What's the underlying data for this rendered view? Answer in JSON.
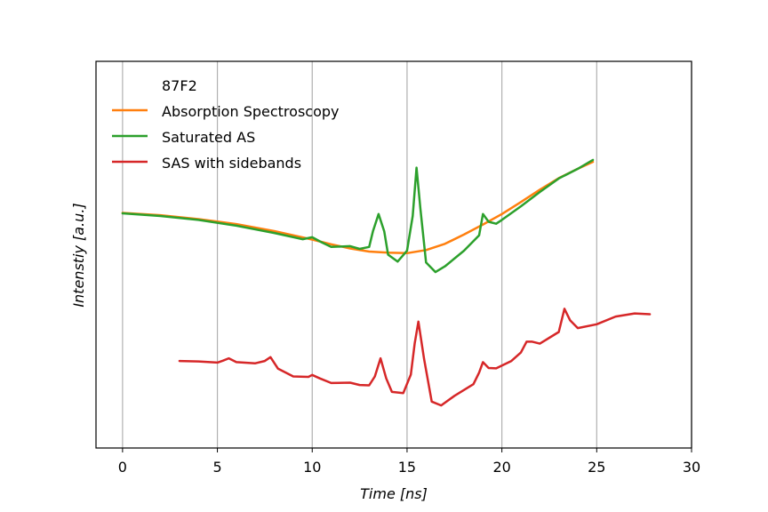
{
  "chart_data": {
    "type": "line",
    "xlabel": "Time [ns]",
    "ylabel": "Intenstiy [a.u.]",
    "xlim": [
      -1.4,
      30
    ],
    "ylim": [
      0,
      1
    ],
    "x_ticks": [
      0,
      5,
      10,
      15,
      20,
      25,
      30
    ],
    "grid": "vertical",
    "legend": {
      "placement": "top-left",
      "title": "87F2",
      "entries": [
        "Absorption Spectroscopy",
        "Saturated AS",
        "SAS with sidebands"
      ]
    },
    "colors": {
      "Absorption Spectroscopy": "#ff7f0e",
      "Saturated AS": "#2ca02c",
      "SAS with sidebands": "#d62728",
      "grid": "#b0b0b0"
    },
    "series": [
      {
        "name": "Absorption Spectroscopy",
        "x": [
          0,
          2,
          4,
          6,
          8,
          10,
          11,
          12,
          13,
          14,
          15,
          16,
          17,
          18,
          19,
          20,
          21,
          22,
          23,
          24,
          24.8
        ],
        "y": [
          0.608,
          0.602,
          0.592,
          0.579,
          0.561,
          0.539,
          0.527,
          0.516,
          0.508,
          0.505,
          0.504,
          0.512,
          0.528,
          0.552,
          0.578,
          0.605,
          0.636,
          0.668,
          0.698,
          0.722,
          0.74
        ]
      },
      {
        "name": "Saturated AS",
        "x": [
          0,
          2,
          4,
          6,
          8,
          9.5,
          10,
          10.5,
          11,
          12,
          12.5,
          13,
          13.2,
          13.5,
          13.8,
          14,
          14.5,
          15,
          15.3,
          15.5,
          15.7,
          16,
          16.5,
          17,
          18,
          18.8,
          19,
          19.3,
          19.7,
          20,
          21,
          22,
          23,
          24,
          24.8
        ],
        "y": [
          0.607,
          0.6,
          0.59,
          0.575,
          0.556,
          0.54,
          0.545,
          0.532,
          0.52,
          0.522,
          0.515,
          0.52,
          0.56,
          0.605,
          0.56,
          0.5,
          0.482,
          0.51,
          0.6,
          0.725,
          0.62,
          0.48,
          0.455,
          0.47,
          0.51,
          0.55,
          0.605,
          0.585,
          0.58,
          0.59,
          0.625,
          0.662,
          0.697,
          0.722,
          0.745
        ]
      },
      {
        "name": "SAS with sidebands",
        "x": [
          3,
          4,
          5,
          5.3,
          5.6,
          6,
          7,
          7.5,
          7.8,
          8.2,
          9,
          9.8,
          10,
          10.4,
          11,
          12,
          12.5,
          13,
          13.3,
          13.6,
          13.9,
          14.2,
          14.8,
          15.2,
          15.4,
          15.6,
          15.9,
          16.3,
          16.8,
          17.5,
          18.5,
          18.8,
          19,
          19.3,
          19.7,
          20.5,
          21,
          21.3,
          21.6,
          22,
          22.5,
          23,
          23.3,
          23.6,
          24,
          25,
          26,
          27,
          27.8
        ],
        "y": [
          0.225,
          0.224,
          0.221,
          0.226,
          0.232,
          0.222,
          0.219,
          0.225,
          0.235,
          0.205,
          0.185,
          0.184,
          0.189,
          0.18,
          0.168,
          0.169,
          0.163,
          0.162,
          0.185,
          0.232,
          0.18,
          0.145,
          0.142,
          0.19,
          0.27,
          0.327,
          0.23,
          0.12,
          0.11,
          0.135,
          0.165,
          0.195,
          0.222,
          0.207,
          0.206,
          0.225,
          0.247,
          0.275,
          0.275,
          0.27,
          0.285,
          0.3,
          0.36,
          0.33,
          0.31,
          0.32,
          0.34,
          0.348,
          0.346
        ]
      }
    ]
  }
}
